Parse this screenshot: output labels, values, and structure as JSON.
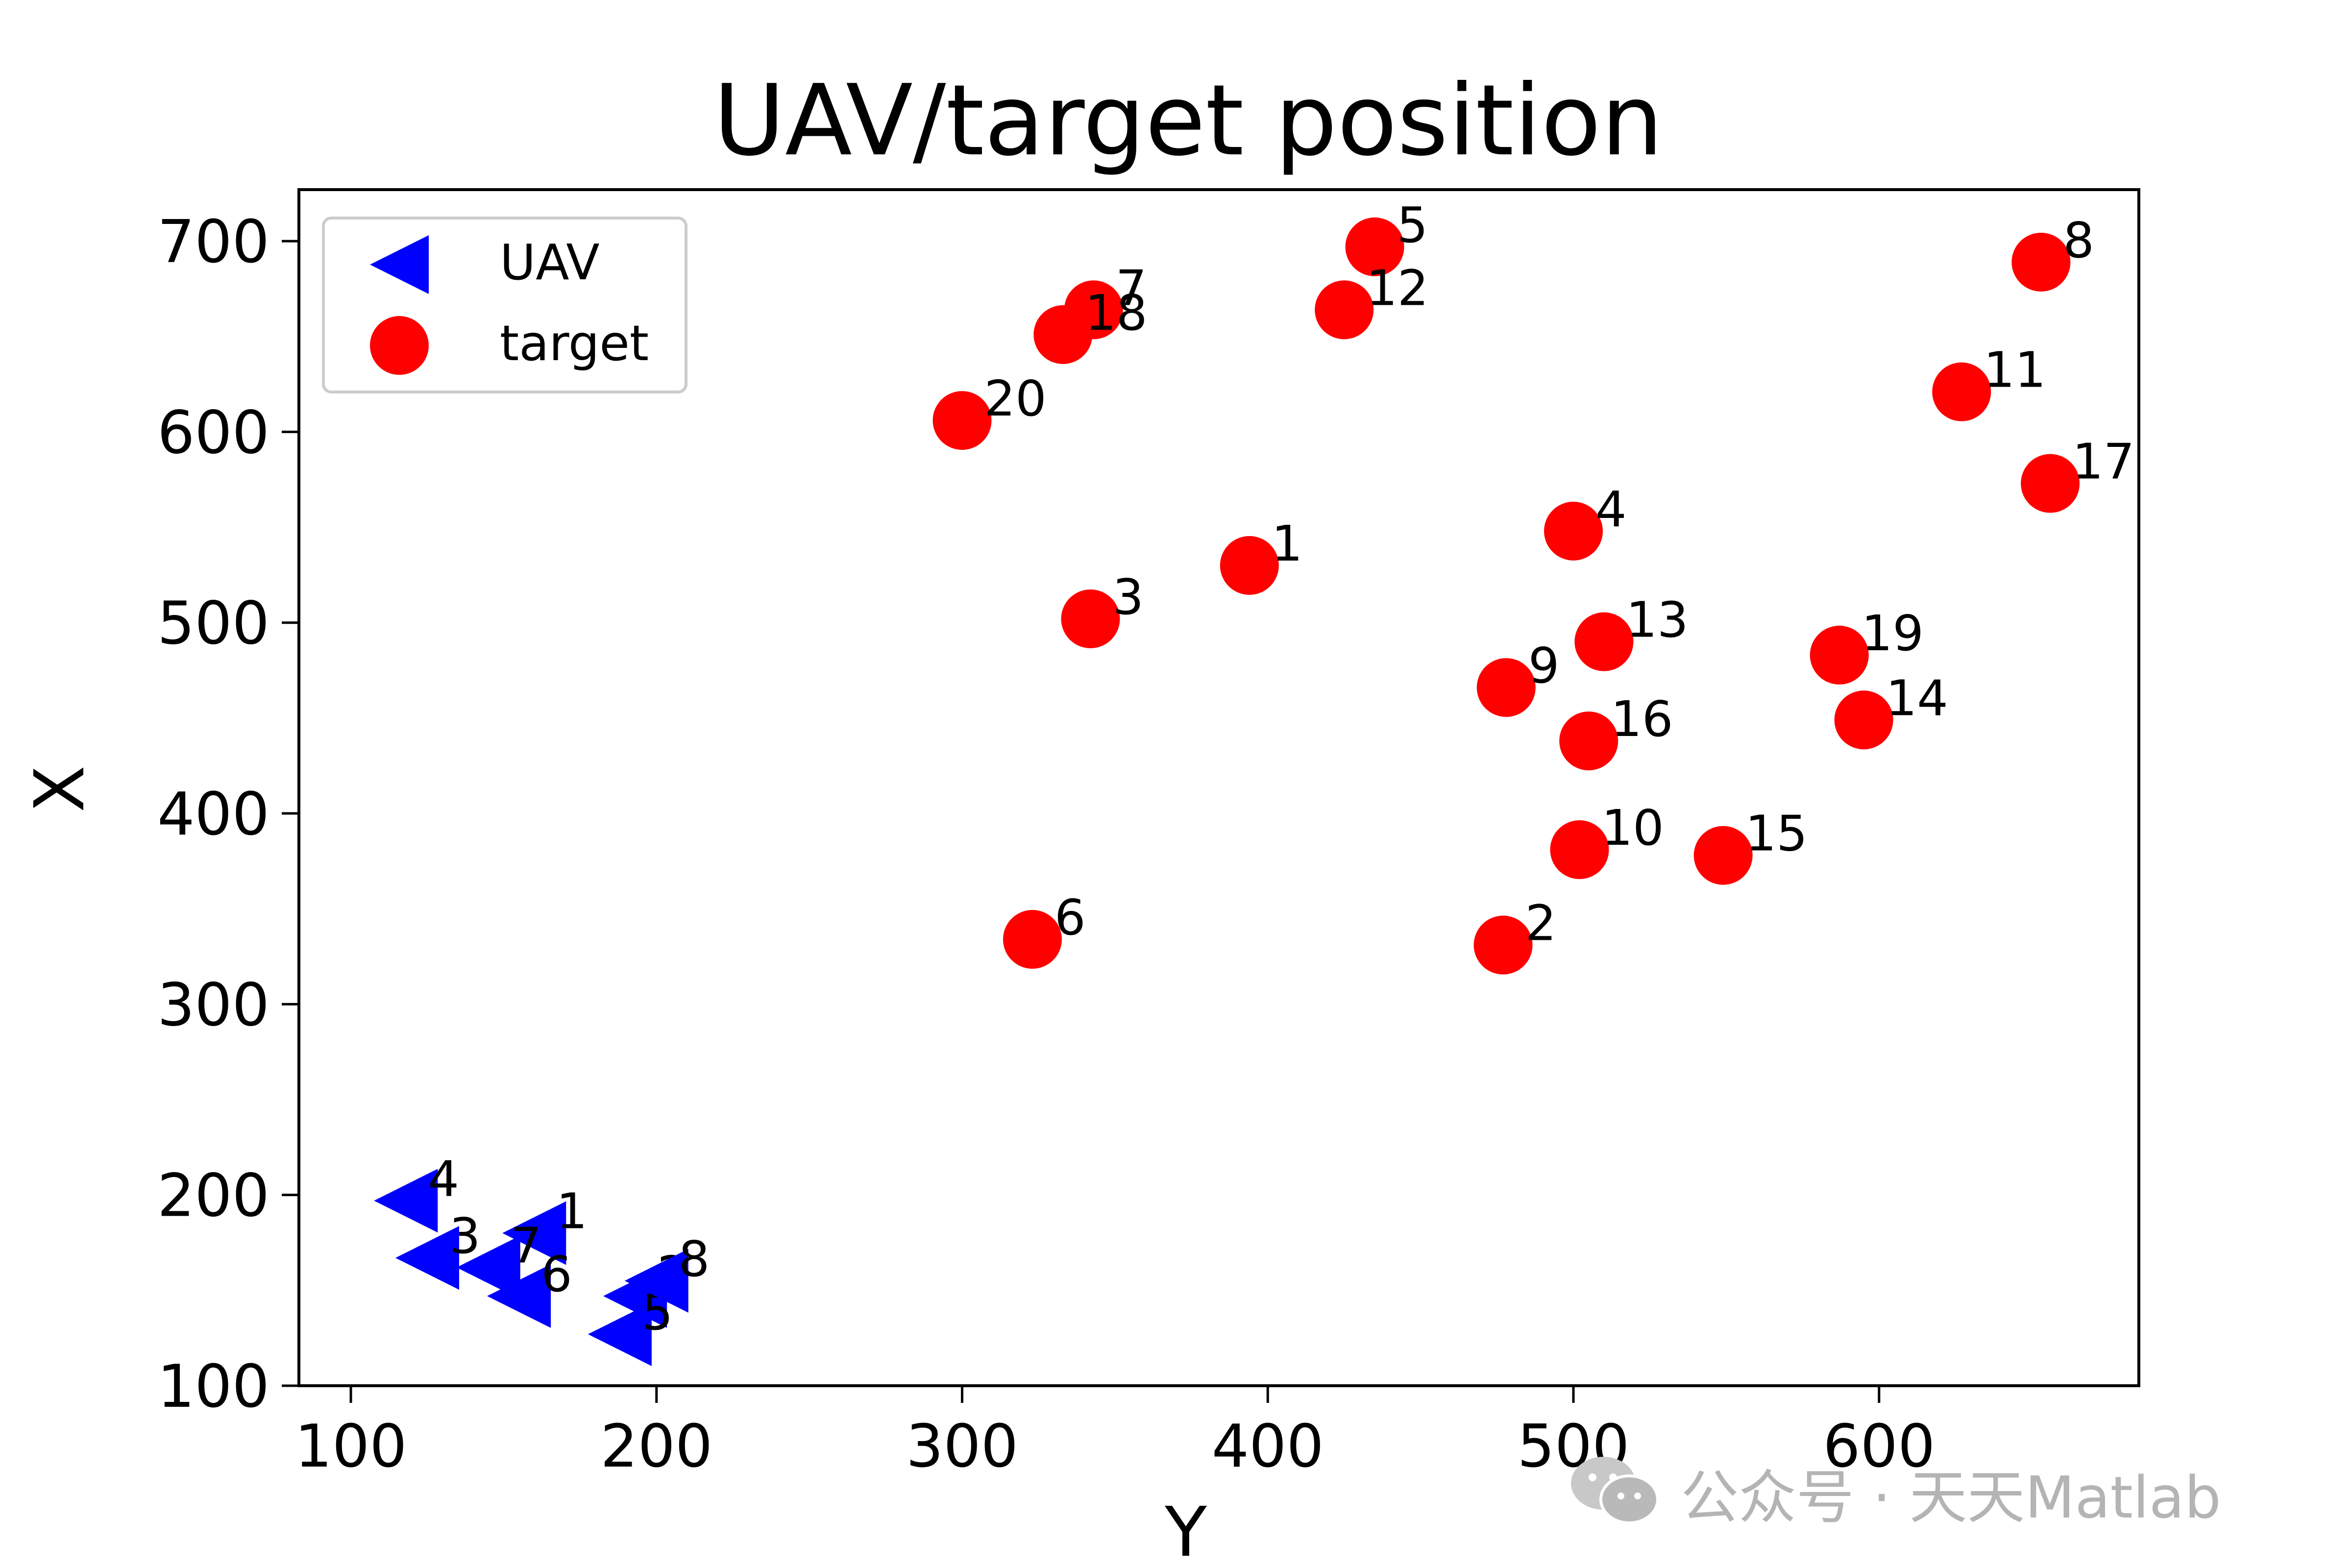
{
  "chart_data": {
    "type": "scatter",
    "title": "UAV/target position",
    "xlabel": "Y",
    "ylabel": "X",
    "xlim": [
      83,
      685
    ],
    "ylim": [
      100,
      727
    ],
    "xticks": [
      100,
      200,
      300,
      400,
      500,
      600
    ],
    "yticks": [
      100,
      200,
      300,
      400,
      500,
      600,
      700
    ],
    "grid": false,
    "legend_position": "top-left",
    "series": [
      {
        "name": "UAV",
        "marker": "triangle-left",
        "color": "#0000ff",
        "points": [
          {
            "label": "1",
            "x": 160,
            "y": 180
          },
          {
            "label": "2",
            "x": 193,
            "y": 147
          },
          {
            "label": "3",
            "x": 125,
            "y": 167
          },
          {
            "label": "4",
            "x": 118,
            "y": 197
          },
          {
            "label": "5",
            "x": 188,
            "y": 127
          },
          {
            "label": "6",
            "x": 155,
            "y": 147
          },
          {
            "label": "7",
            "x": 145,
            "y": 162
          },
          {
            "label": "8",
            "x": 200,
            "y": 155
          }
        ]
      },
      {
        "name": "target",
        "marker": "circle",
        "color": "#ff0000",
        "points": [
          {
            "label": "1",
            "x": 394,
            "y": 530
          },
          {
            "label": "2",
            "x": 477,
            "y": 331
          },
          {
            "label": "3",
            "x": 342,
            "y": 502
          },
          {
            "label": "4",
            "x": 500,
            "y": 548
          },
          {
            "label": "5",
            "x": 435,
            "y": 697
          },
          {
            "label": "6",
            "x": 323,
            "y": 334
          },
          {
            "label": "7",
            "x": 343,
            "y": 664
          },
          {
            "label": "8",
            "x": 653,
            "y": 689
          },
          {
            "label": "9",
            "x": 478,
            "y": 466
          },
          {
            "label": "10",
            "x": 502,
            "y": 381
          },
          {
            "label": "11",
            "x": 627,
            "y": 621
          },
          {
            "label": "12",
            "x": 425,
            "y": 664
          },
          {
            "label": "13",
            "x": 510,
            "y": 490
          },
          {
            "label": "14",
            "x": 595,
            "y": 449
          },
          {
            "label": "15",
            "x": 549,
            "y": 378
          },
          {
            "label": "16",
            "x": 505,
            "y": 438
          },
          {
            "label": "17",
            "x": 656,
            "y": 573
          },
          {
            "label": "18",
            "x": 333,
            "y": 651
          },
          {
            "label": "19",
            "x": 587,
            "y": 483
          },
          {
            "label": "20",
            "x": 300,
            "y": 606
          }
        ]
      }
    ]
  },
  "watermark": {
    "icon": "wechat-icon",
    "text": "公众号 · 天天Matlab"
  }
}
